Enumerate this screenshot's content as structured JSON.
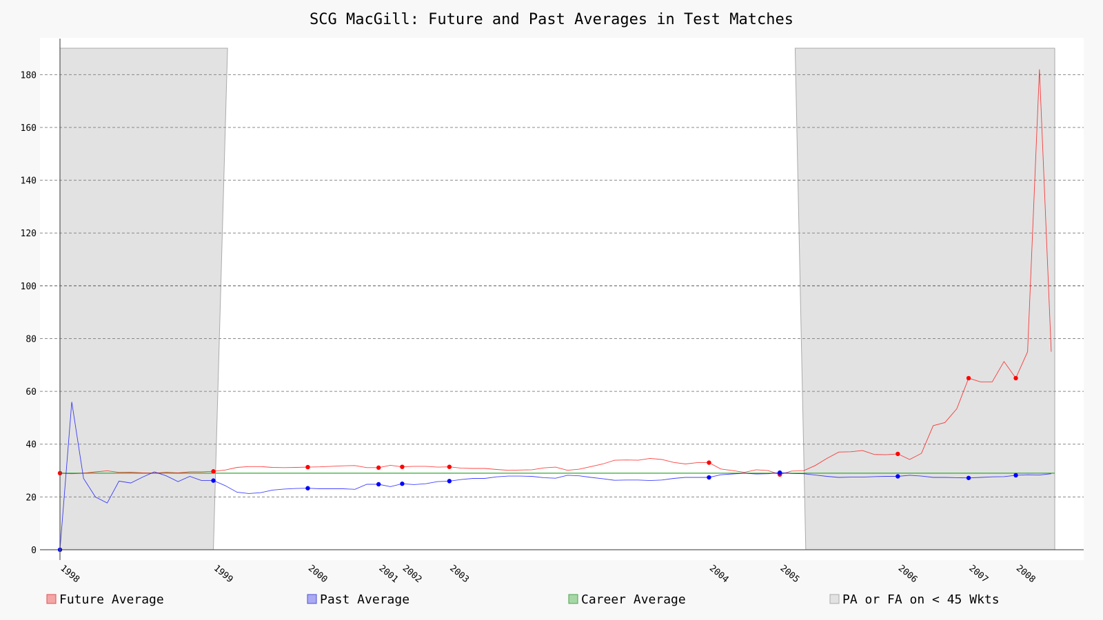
{
  "chart_data": {
    "type": "line",
    "title": "SCG MacGill: Future and Past Averages in Test Matches",
    "xlabel": "",
    "ylabel": "",
    "ylim": [
      0,
      190
    ],
    "xlim": [
      0,
      85
    ],
    "grid": true,
    "yticks": [
      0,
      20,
      40,
      60,
      80,
      100,
      120,
      140,
      160,
      180
    ],
    "year_ticks": [
      {
        "label": "1998",
        "x": 0
      },
      {
        "label": "1999",
        "x": 13
      },
      {
        "label": "2000",
        "x": 21
      },
      {
        "label": "2001",
        "x": 27
      },
      {
        "label": "2002",
        "x": 29
      },
      {
        "label": "2003",
        "x": 33
      },
      {
        "label": "2004",
        "x": 55
      },
      {
        "label": "2005",
        "x": 61
      },
      {
        "label": "2006",
        "x": 71
      },
      {
        "label": "2007",
        "x": 77
      },
      {
        "label": "2008",
        "x": 81
      }
    ],
    "shaded_regions": [
      {
        "top_x": [
          0,
          14.2
        ],
        "bottom_x": [
          0,
          13
        ]
      },
      {
        "top_x": [
          62.3,
          84.3
        ],
        "bottom_x": [
          63.2,
          84.3
        ]
      }
    ],
    "career_average": 29.0,
    "series": [
      {
        "name": "Future Average",
        "color": "#ff0000",
        "marker_x": [
          0,
          13,
          21,
          27,
          29,
          33,
          55,
          61,
          71,
          77,
          81
        ],
        "points": [
          [
            0,
            29.0
          ],
          [
            1,
            28.8
          ],
          [
            2,
            29.0
          ],
          [
            3,
            29.5
          ],
          [
            4,
            29.9
          ],
          [
            5,
            29.3
          ],
          [
            6,
            29.4
          ],
          [
            7,
            29.1
          ],
          [
            8,
            29.0
          ],
          [
            9,
            29.4
          ],
          [
            10,
            29.1
          ],
          [
            11,
            29.5
          ],
          [
            12,
            29.5
          ],
          [
            13,
            29.7
          ],
          [
            14,
            30.2
          ],
          [
            15,
            31.2
          ],
          [
            16,
            31.5
          ],
          [
            17,
            31.5
          ],
          [
            18,
            31.2
          ],
          [
            19,
            31.1
          ],
          [
            20,
            31.2
          ],
          [
            21,
            31.3
          ],
          [
            22,
            31.4
          ],
          [
            23,
            31.6
          ],
          [
            24,
            31.8
          ],
          [
            25,
            31.9
          ],
          [
            26,
            31.1
          ],
          [
            27,
            31.1
          ],
          [
            28,
            32.0
          ],
          [
            29,
            31.4
          ],
          [
            30,
            31.6
          ],
          [
            31,
            31.6
          ],
          [
            32,
            31.3
          ],
          [
            33,
            31.4
          ],
          [
            34,
            30.9
          ],
          [
            35,
            30.8
          ],
          [
            36,
            30.8
          ],
          [
            37,
            30.4
          ],
          [
            38,
            30.1
          ],
          [
            39,
            30.2
          ],
          [
            40,
            30.3
          ],
          [
            41,
            31.0
          ],
          [
            42,
            31.3
          ],
          [
            43,
            30.1
          ],
          [
            44,
            30.5
          ],
          [
            45,
            31.5
          ],
          [
            46,
            32.5
          ],
          [
            47,
            33.9
          ],
          [
            48,
            34.0
          ],
          [
            49,
            33.9
          ],
          [
            50,
            34.6
          ],
          [
            51,
            34.2
          ],
          [
            52,
            33.1
          ],
          [
            53,
            32.5
          ],
          [
            54,
            33.0
          ],
          [
            55,
            33.0
          ],
          [
            56,
            30.6
          ],
          [
            57,
            30.0
          ],
          [
            58,
            29.3
          ],
          [
            59,
            30.3
          ],
          [
            60,
            30.0
          ],
          [
            61,
            28.5
          ],
          [
            62,
            29.8
          ],
          [
            63,
            29.9
          ],
          [
            64,
            31.9
          ],
          [
            65,
            34.6
          ],
          [
            66,
            37.0
          ],
          [
            67,
            37.1
          ],
          [
            68,
            37.6
          ],
          [
            69,
            36.1
          ],
          [
            70,
            36.0
          ],
          [
            71,
            36.3
          ],
          [
            72,
            34.2
          ],
          [
            73,
            36.5
          ],
          [
            74,
            47.0
          ],
          [
            75,
            48.2
          ],
          [
            76,
            53.4
          ],
          [
            77,
            65.0
          ],
          [
            78,
            63.6
          ],
          [
            79,
            63.6
          ],
          [
            80,
            71.3
          ],
          [
            81,
            65.0
          ],
          [
            82,
            75.0
          ],
          [
            83,
            182.0
          ],
          [
            84,
            75.0
          ]
        ]
      },
      {
        "name": "Past Average",
        "color": "#0000ff",
        "marker_x": [
          0,
          13,
          21,
          27,
          29,
          33,
          55,
          61,
          71,
          77,
          81
        ],
        "points": [
          [
            0,
            0.0
          ],
          [
            1,
            56.0
          ],
          [
            2,
            27.0
          ],
          [
            3,
            20.0
          ],
          [
            4,
            17.7
          ],
          [
            5,
            26.0
          ],
          [
            6,
            25.3
          ],
          [
            7,
            27.5
          ],
          [
            8,
            29.5
          ],
          [
            9,
            28.0
          ],
          [
            10,
            25.8
          ],
          [
            11,
            27.8
          ],
          [
            12,
            26.2
          ],
          [
            13,
            26.2
          ],
          [
            14,
            24.3
          ],
          [
            15,
            21.8
          ],
          [
            16,
            21.3
          ],
          [
            17,
            21.6
          ],
          [
            18,
            22.6
          ],
          [
            19,
            23.0
          ],
          [
            20,
            23.2
          ],
          [
            21,
            23.3
          ],
          [
            22,
            23.1
          ],
          [
            23,
            23.1
          ],
          [
            24,
            23.1
          ],
          [
            25,
            22.9
          ],
          [
            26,
            24.8
          ],
          [
            27,
            24.8
          ],
          [
            28,
            23.9
          ],
          [
            29,
            25.0
          ],
          [
            30,
            24.7
          ],
          [
            31,
            25.0
          ],
          [
            32,
            25.8
          ],
          [
            33,
            26.0
          ],
          [
            34,
            26.6
          ],
          [
            35,
            27.0
          ],
          [
            36,
            27.0
          ],
          [
            37,
            27.6
          ],
          [
            38,
            27.9
          ],
          [
            39,
            27.9
          ],
          [
            40,
            27.8
          ],
          [
            41,
            27.3
          ],
          [
            42,
            27.1
          ],
          [
            43,
            28.2
          ],
          [
            44,
            28.0
          ],
          [
            45,
            27.4
          ],
          [
            46,
            26.9
          ],
          [
            47,
            26.3
          ],
          [
            48,
            26.4
          ],
          [
            49,
            26.4
          ],
          [
            50,
            26.2
          ],
          [
            51,
            26.4
          ],
          [
            52,
            27.0
          ],
          [
            53,
            27.4
          ],
          [
            54,
            27.4
          ],
          [
            55,
            27.4
          ],
          [
            56,
            28.4
          ],
          [
            57,
            28.7
          ],
          [
            58,
            29.0
          ],
          [
            59,
            28.7
          ],
          [
            60,
            28.8
          ],
          [
            61,
            29.2
          ],
          [
            62,
            28.9
          ],
          [
            63,
            28.8
          ],
          [
            64,
            28.3
          ],
          [
            65,
            27.8
          ],
          [
            66,
            27.4
          ],
          [
            67,
            27.5
          ],
          [
            68,
            27.5
          ],
          [
            69,
            27.7
          ],
          [
            70,
            27.8
          ],
          [
            71,
            27.8
          ],
          [
            72,
            28.2
          ],
          [
            73,
            27.9
          ],
          [
            74,
            27.4
          ],
          [
            75,
            27.4
          ],
          [
            76,
            27.3
          ],
          [
            77,
            27.2
          ],
          [
            78,
            27.4
          ],
          [
            79,
            27.6
          ],
          [
            80,
            27.7
          ],
          [
            81,
            28.2
          ],
          [
            82,
            28.4
          ],
          [
            83,
            28.3
          ],
          [
            84,
            28.8
          ]
        ]
      }
    ],
    "legend": [
      {
        "label": "Future Average",
        "fill": "#f4a6a6",
        "stroke": "#e05050"
      },
      {
        "label": "Past Average",
        "fill": "#aaaaf4",
        "stroke": "#5050d0"
      },
      {
        "label": "Career Average",
        "fill": "#a6d8a6",
        "stroke": "#50a050"
      },
      {
        "label": "PA or FA on < 45 Wkts",
        "fill": "#e2e2e2",
        "stroke": "#aaaaaa"
      }
    ]
  }
}
